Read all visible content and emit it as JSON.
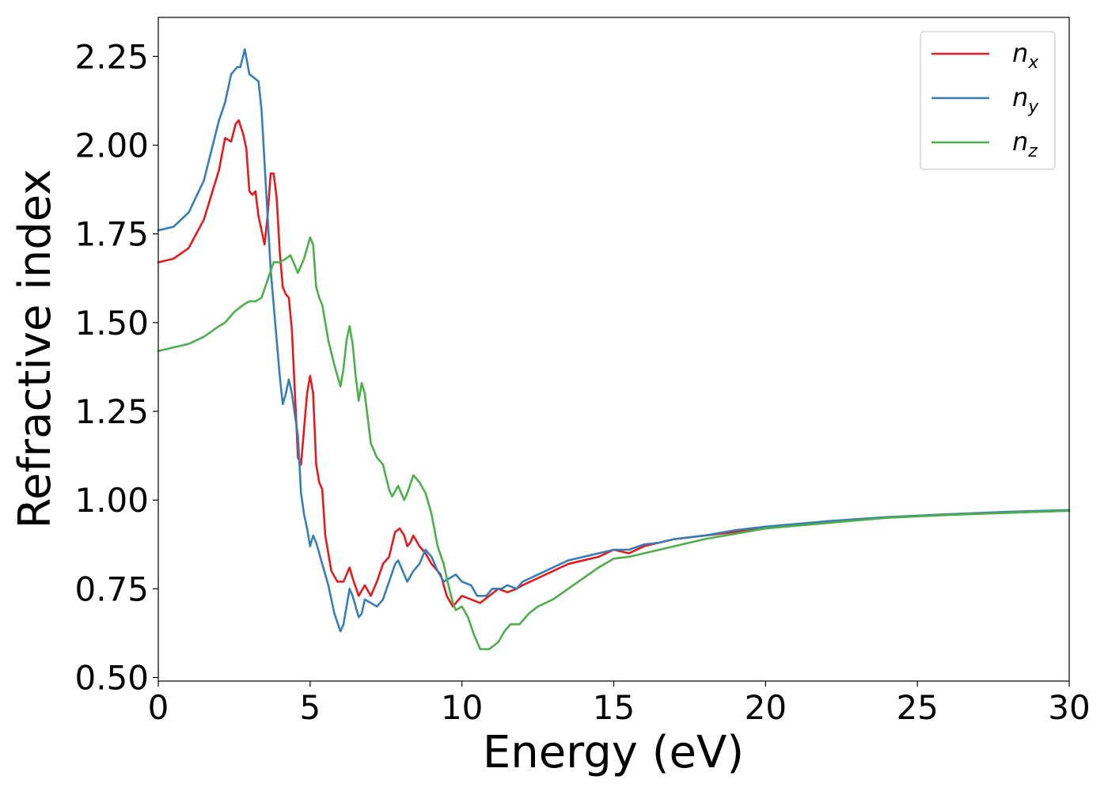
{
  "chart_data": {
    "type": "line",
    "xlabel": "Energy (eV)",
    "ylabel": "Refractive index",
    "xlim": [
      0,
      30
    ],
    "ylim": [
      0.49,
      2.36
    ],
    "xticks": [
      0,
      5,
      10,
      15,
      20,
      25,
      30
    ],
    "xtick_labels": [
      "0",
      "5",
      "10",
      "15",
      "20",
      "25",
      "30"
    ],
    "yticks": [
      0.5,
      0.75,
      1.0,
      1.25,
      1.5,
      1.75,
      2.0,
      2.25
    ],
    "ytick_labels": [
      "0.50",
      "0.75",
      "1.00",
      "1.25",
      "1.50",
      "1.75",
      "2.00",
      "2.25"
    ],
    "grid": false,
    "legend_position": "top-right",
    "series": [
      {
        "name": "n_x",
        "label_main": "n",
        "label_sub": "x",
        "color": "#e41a1c",
        "points": [
          [
            0,
            1.67
          ],
          [
            0.5,
            1.68
          ],
          [
            1.0,
            1.71
          ],
          [
            1.5,
            1.79
          ],
          [
            2.0,
            1.93
          ],
          [
            2.2,
            2.02
          ],
          [
            2.4,
            2.01
          ],
          [
            2.55,
            2.06
          ],
          [
            2.65,
            2.07
          ],
          [
            2.8,
            2.03
          ],
          [
            2.9,
            1.99
          ],
          [
            3.0,
            1.87
          ],
          [
            3.1,
            1.86
          ],
          [
            3.2,
            1.87
          ],
          [
            3.3,
            1.8
          ],
          [
            3.5,
            1.72
          ],
          [
            3.6,
            1.8
          ],
          [
            3.7,
            1.92
          ],
          [
            3.8,
            1.92
          ],
          [
            3.9,
            1.85
          ],
          [
            4.0,
            1.7
          ],
          [
            4.1,
            1.6
          ],
          [
            4.2,
            1.58
          ],
          [
            4.3,
            1.57
          ],
          [
            4.4,
            1.48
          ],
          [
            4.5,
            1.3
          ],
          [
            4.6,
            1.12
          ],
          [
            4.7,
            1.1
          ],
          [
            4.8,
            1.2
          ],
          [
            4.9,
            1.3
          ],
          [
            5.0,
            1.35
          ],
          [
            5.1,
            1.3
          ],
          [
            5.2,
            1.1
          ],
          [
            5.3,
            1.05
          ],
          [
            5.4,
            1.03
          ],
          [
            5.5,
            0.9
          ],
          [
            5.7,
            0.8
          ],
          [
            5.9,
            0.77
          ],
          [
            6.1,
            0.77
          ],
          [
            6.3,
            0.81
          ],
          [
            6.4,
            0.78
          ],
          [
            6.6,
            0.73
          ],
          [
            6.8,
            0.76
          ],
          [
            7.0,
            0.73
          ],
          [
            7.2,
            0.77
          ],
          [
            7.4,
            0.82
          ],
          [
            7.6,
            0.84
          ],
          [
            7.8,
            0.91
          ],
          [
            7.95,
            0.92
          ],
          [
            8.1,
            0.9
          ],
          [
            8.2,
            0.87
          ],
          [
            8.3,
            0.88
          ],
          [
            8.4,
            0.9
          ],
          [
            8.6,
            0.87
          ],
          [
            8.8,
            0.85
          ],
          [
            9.0,
            0.82
          ],
          [
            9.3,
            0.79
          ],
          [
            9.5,
            0.73
          ],
          [
            9.7,
            0.7
          ],
          [
            10.0,
            0.73
          ],
          [
            10.3,
            0.72
          ],
          [
            10.6,
            0.71
          ],
          [
            10.9,
            0.73
          ],
          [
            11.2,
            0.75
          ],
          [
            11.5,
            0.74
          ],
          [
            11.8,
            0.75
          ],
          [
            12.0,
            0.76
          ],
          [
            12.5,
            0.78
          ],
          [
            13.0,
            0.8
          ],
          [
            13.5,
            0.82
          ],
          [
            14.0,
            0.83
          ],
          [
            14.5,
            0.84
          ],
          [
            15.0,
            0.86
          ],
          [
            15.5,
            0.85
          ],
          [
            16.0,
            0.87
          ],
          [
            16.5,
            0.88
          ],
          [
            17.0,
            0.89
          ],
          [
            18.0,
            0.9
          ],
          [
            19.0,
            0.91
          ],
          [
            20.0,
            0.92
          ],
          [
            22.0,
            0.94
          ],
          [
            24.0,
            0.95
          ],
          [
            26.0,
            0.96
          ],
          [
            28.0,
            0.965
          ],
          [
            30.0,
            0.97
          ]
        ]
      },
      {
        "name": "n_y",
        "label_main": "n",
        "label_sub": "y",
        "color": "#377eb8",
        "points": [
          [
            0,
            1.76
          ],
          [
            0.5,
            1.77
          ],
          [
            1.0,
            1.81
          ],
          [
            1.5,
            1.9
          ],
          [
            2.0,
            2.07
          ],
          [
            2.2,
            2.12
          ],
          [
            2.4,
            2.2
          ],
          [
            2.6,
            2.22
          ],
          [
            2.7,
            2.22
          ],
          [
            2.85,
            2.27
          ],
          [
            3.0,
            2.2
          ],
          [
            3.15,
            2.19
          ],
          [
            3.3,
            2.18
          ],
          [
            3.4,
            2.1
          ],
          [
            3.5,
            1.95
          ],
          [
            3.6,
            1.8
          ],
          [
            3.7,
            1.65
          ],
          [
            3.8,
            1.55
          ],
          [
            3.9,
            1.45
          ],
          [
            4.0,
            1.35
          ],
          [
            4.1,
            1.27
          ],
          [
            4.2,
            1.3
          ],
          [
            4.3,
            1.34
          ],
          [
            4.4,
            1.3
          ],
          [
            4.6,
            1.18
          ],
          [
            4.7,
            1.02
          ],
          [
            4.8,
            0.96
          ],
          [
            4.9,
            0.92
          ],
          [
            5.0,
            0.87
          ],
          [
            5.1,
            0.9
          ],
          [
            5.2,
            0.88
          ],
          [
            5.4,
            0.82
          ],
          [
            5.6,
            0.76
          ],
          [
            5.8,
            0.68
          ],
          [
            6.0,
            0.63
          ],
          [
            6.1,
            0.65
          ],
          [
            6.2,
            0.7
          ],
          [
            6.3,
            0.75
          ],
          [
            6.4,
            0.73
          ],
          [
            6.6,
            0.67
          ],
          [
            6.7,
            0.68
          ],
          [
            6.8,
            0.72
          ],
          [
            7.0,
            0.71
          ],
          [
            7.2,
            0.7
          ],
          [
            7.4,
            0.72
          ],
          [
            7.6,
            0.77
          ],
          [
            7.8,
            0.82
          ],
          [
            7.9,
            0.83
          ],
          [
            8.1,
            0.79
          ],
          [
            8.2,
            0.77
          ],
          [
            8.4,
            0.8
          ],
          [
            8.6,
            0.82
          ],
          [
            8.8,
            0.86
          ],
          [
            9.0,
            0.84
          ],
          [
            9.2,
            0.8
          ],
          [
            9.4,
            0.77
          ],
          [
            9.6,
            0.78
          ],
          [
            9.8,
            0.79
          ],
          [
            10.0,
            0.77
          ],
          [
            10.3,
            0.76
          ],
          [
            10.5,
            0.73
          ],
          [
            10.8,
            0.73
          ],
          [
            11.0,
            0.75
          ],
          [
            11.3,
            0.75
          ],
          [
            11.5,
            0.76
          ],
          [
            11.8,
            0.75
          ],
          [
            12.0,
            0.77
          ],
          [
            12.5,
            0.79
          ],
          [
            13.0,
            0.81
          ],
          [
            13.5,
            0.83
          ],
          [
            14.0,
            0.84
          ],
          [
            14.5,
            0.85
          ],
          [
            15.0,
            0.86
          ],
          [
            15.5,
            0.86
          ],
          [
            16.0,
            0.875
          ],
          [
            16.5,
            0.88
          ],
          [
            17.0,
            0.89
          ],
          [
            18.0,
            0.9
          ],
          [
            19.0,
            0.915
          ],
          [
            20.0,
            0.925
          ],
          [
            22.0,
            0.94
          ],
          [
            24.0,
            0.952
          ],
          [
            26.0,
            0.96
          ],
          [
            28.0,
            0.967
          ],
          [
            30.0,
            0.972
          ]
        ]
      },
      {
        "name": "n_z",
        "label_main": "n",
        "label_sub": "z",
        "color": "#4daf4a",
        "points": [
          [
            0,
            1.42
          ],
          [
            0.5,
            1.43
          ],
          [
            1.0,
            1.44
          ],
          [
            1.5,
            1.46
          ],
          [
            2.0,
            1.49
          ],
          [
            2.2,
            1.5
          ],
          [
            2.5,
            1.53
          ],
          [
            2.8,
            1.55
          ],
          [
            3.0,
            1.56
          ],
          [
            3.2,
            1.56
          ],
          [
            3.4,
            1.57
          ],
          [
            3.6,
            1.62
          ],
          [
            3.8,
            1.67
          ],
          [
            4.0,
            1.67
          ],
          [
            4.2,
            1.68
          ],
          [
            4.35,
            1.69
          ],
          [
            4.5,
            1.66
          ],
          [
            4.6,
            1.64
          ],
          [
            4.8,
            1.68
          ],
          [
            5.0,
            1.74
          ],
          [
            5.1,
            1.72
          ],
          [
            5.2,
            1.6
          ],
          [
            5.3,
            1.57
          ],
          [
            5.4,
            1.55
          ],
          [
            5.6,
            1.45
          ],
          [
            5.8,
            1.38
          ],
          [
            6.0,
            1.32
          ],
          [
            6.1,
            1.37
          ],
          [
            6.2,
            1.45
          ],
          [
            6.3,
            1.49
          ],
          [
            6.4,
            1.44
          ],
          [
            6.5,
            1.35
          ],
          [
            6.6,
            1.28
          ],
          [
            6.7,
            1.33
          ],
          [
            6.8,
            1.3
          ],
          [
            6.9,
            1.23
          ],
          [
            7.0,
            1.16
          ],
          [
            7.2,
            1.12
          ],
          [
            7.4,
            1.1
          ],
          [
            7.6,
            1.03
          ],
          [
            7.7,
            1.01
          ],
          [
            7.9,
            1.04
          ],
          [
            8.0,
            1.02
          ],
          [
            8.1,
            1.0
          ],
          [
            8.2,
            1.02
          ],
          [
            8.4,
            1.07
          ],
          [
            8.6,
            1.05
          ],
          [
            8.8,
            1.02
          ],
          [
            9.0,
            0.96
          ],
          [
            9.2,
            0.87
          ],
          [
            9.4,
            0.82
          ],
          [
            9.5,
            0.78
          ],
          [
            9.7,
            0.71
          ],
          [
            9.8,
            0.69
          ],
          [
            10.0,
            0.7
          ],
          [
            10.2,
            0.67
          ],
          [
            10.4,
            0.62
          ],
          [
            10.6,
            0.58
          ],
          [
            10.9,
            0.58
          ],
          [
            11.2,
            0.6
          ],
          [
            11.4,
            0.63
          ],
          [
            11.6,
            0.65
          ],
          [
            11.9,
            0.65
          ],
          [
            12.2,
            0.68
          ],
          [
            12.5,
            0.7
          ],
          [
            13.0,
            0.72
          ],
          [
            13.5,
            0.75
          ],
          [
            14.0,
            0.78
          ],
          [
            14.5,
            0.81
          ],
          [
            15.0,
            0.835
          ],
          [
            15.5,
            0.84
          ],
          [
            16.0,
            0.85
          ],
          [
            16.5,
            0.86
          ],
          [
            17.0,
            0.87
          ],
          [
            18.0,
            0.89
          ],
          [
            19.0,
            0.905
          ],
          [
            20.0,
            0.92
          ],
          [
            22.0,
            0.935
          ],
          [
            24.0,
            0.95
          ],
          [
            26.0,
            0.958
          ],
          [
            28.0,
            0.964
          ],
          [
            30.0,
            0.97
          ]
        ]
      }
    ]
  }
}
